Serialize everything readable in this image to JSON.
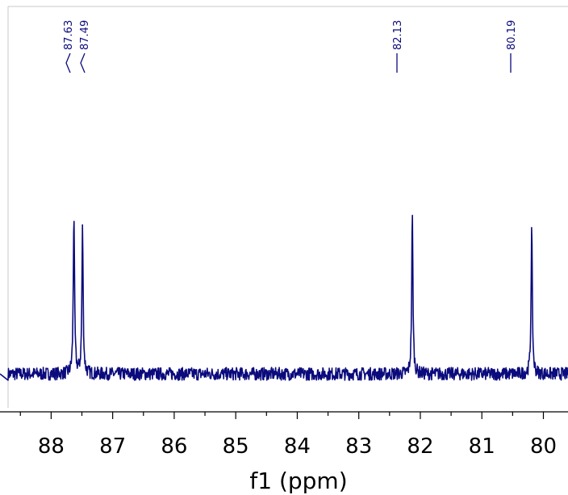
{
  "chart_data": {
    "type": "line",
    "title": "",
    "xlabel": "f1 (ppm)",
    "ylabel": "",
    "xlim": [
      88.7,
      79.6
    ],
    "x_reversed": true,
    "x_ticks": [
      88,
      87,
      86,
      85,
      84,
      83,
      82,
      81,
      80
    ],
    "x_tick_labels": [
      "88",
      "87",
      "86",
      "85",
      "84",
      "83",
      "82",
      "81",
      "80"
    ],
    "grid": false,
    "series": [
      {
        "color": "#0b0b7d",
        "peaks": [
          {
            "x": 87.63,
            "intensity": 0.77
          },
          {
            "x": 87.49,
            "intensity": 0.7
          },
          {
            "x": 82.13,
            "intensity": 0.76
          },
          {
            "x": 80.19,
            "intensity": 0.7
          }
        ],
        "baseline": 0.02,
        "noise_amplitude": 0.03
      }
    ],
    "peak_labels": [
      "87.63",
      "87.49",
      "82.13",
      "80.19"
    ],
    "label_color": "#0b0b7d"
  }
}
